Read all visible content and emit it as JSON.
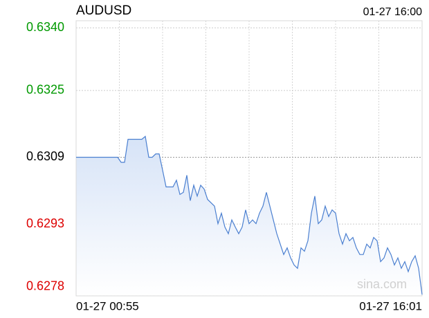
{
  "chart_data": {
    "type": "line",
    "title": "AUDUSD",
    "timestamp": "01-27 16:00",
    "watermark": "sina.com",
    "categories": [
      "01-27 00:55",
      null,
      null,
      null,
      null,
      null,
      null,
      null,
      null,
      null,
      null,
      null,
      null,
      null,
      null,
      null,
      null,
      null,
      null,
      null,
      null,
      null,
      null,
      null,
      null,
      null,
      null,
      null,
      null,
      null,
      null,
      null,
      null,
      null,
      null,
      null,
      null,
      null,
      null,
      null,
      null,
      null,
      null,
      null,
      null,
      null,
      null,
      null,
      null,
      null,
      null,
      null,
      null,
      null,
      null,
      null,
      null,
      null,
      null,
      null,
      null,
      null,
      null,
      null,
      null,
      null,
      null,
      null,
      null,
      null,
      null,
      null,
      null,
      null,
      null,
      null,
      null,
      null,
      null,
      null,
      null,
      null,
      null,
      null,
      null,
      null,
      null,
      null,
      null,
      null,
      null,
      null,
      null,
      null,
      null,
      null,
      null,
      null,
      null,
      null,
      "01-27 16:01"
    ],
    "series": [
      {
        "name": "AUDUSD",
        "color": "#4a7fd0",
        "values": [
          0.6309,
          0.6309,
          0.6309,
          0.6309,
          0.6309,
          0.6309,
          0.6309,
          0.6309,
          0.6309,
          0.6309,
          0.6309,
          0.6309,
          0.6309,
          0.63078,
          0.63078,
          0.63133,
          0.63133,
          0.63133,
          0.63133,
          0.63133,
          0.6314,
          0.6309,
          0.6309,
          0.63098,
          0.63098,
          0.63059,
          0.63019,
          0.63019,
          0.63019,
          0.63035,
          0.63001,
          0.63006,
          0.63047,
          0.62986,
          0.63023,
          0.62997,
          0.63023,
          0.63014,
          0.62989,
          0.62981,
          0.62973,
          0.62931,
          0.62956,
          0.62923,
          0.62907,
          0.6294,
          0.62923,
          0.62907,
          0.62923,
          0.62964,
          0.62931,
          0.6294,
          0.62931,
          0.62956,
          0.62973,
          0.63006,
          0.62973,
          0.6294,
          0.62907,
          0.62882,
          0.62857,
          0.62873,
          0.62849,
          0.62832,
          0.62824,
          0.62873,
          0.62865,
          0.6289,
          0.62956,
          0.62997,
          0.62931,
          0.6294,
          0.62973,
          0.62948,
          0.62964,
          0.62956,
          0.62907,
          0.62882,
          0.62907,
          0.6289,
          0.62898,
          0.62873,
          0.62857,
          0.62857,
          0.62882,
          0.62873,
          0.62898,
          0.6289,
          0.6284,
          0.62849,
          0.62873,
          0.62857,
          0.62832,
          0.62849,
          0.62824,
          0.6284,
          0.62816,
          0.6284,
          0.62854,
          0.62824,
          0.62761
        ]
      }
    ],
    "ylim": [
      0.62758,
      0.63417
    ],
    "yticks": [
      {
        "value": 0.634,
        "label": "0.6340"
      },
      0.6325,
      0.6309,
      0.6293,
      0.6278
    ],
    "up_color": "#009900",
    "down_color": "#dd0000",
    "neutral_color": "#000000",
    "grid": true
  }
}
